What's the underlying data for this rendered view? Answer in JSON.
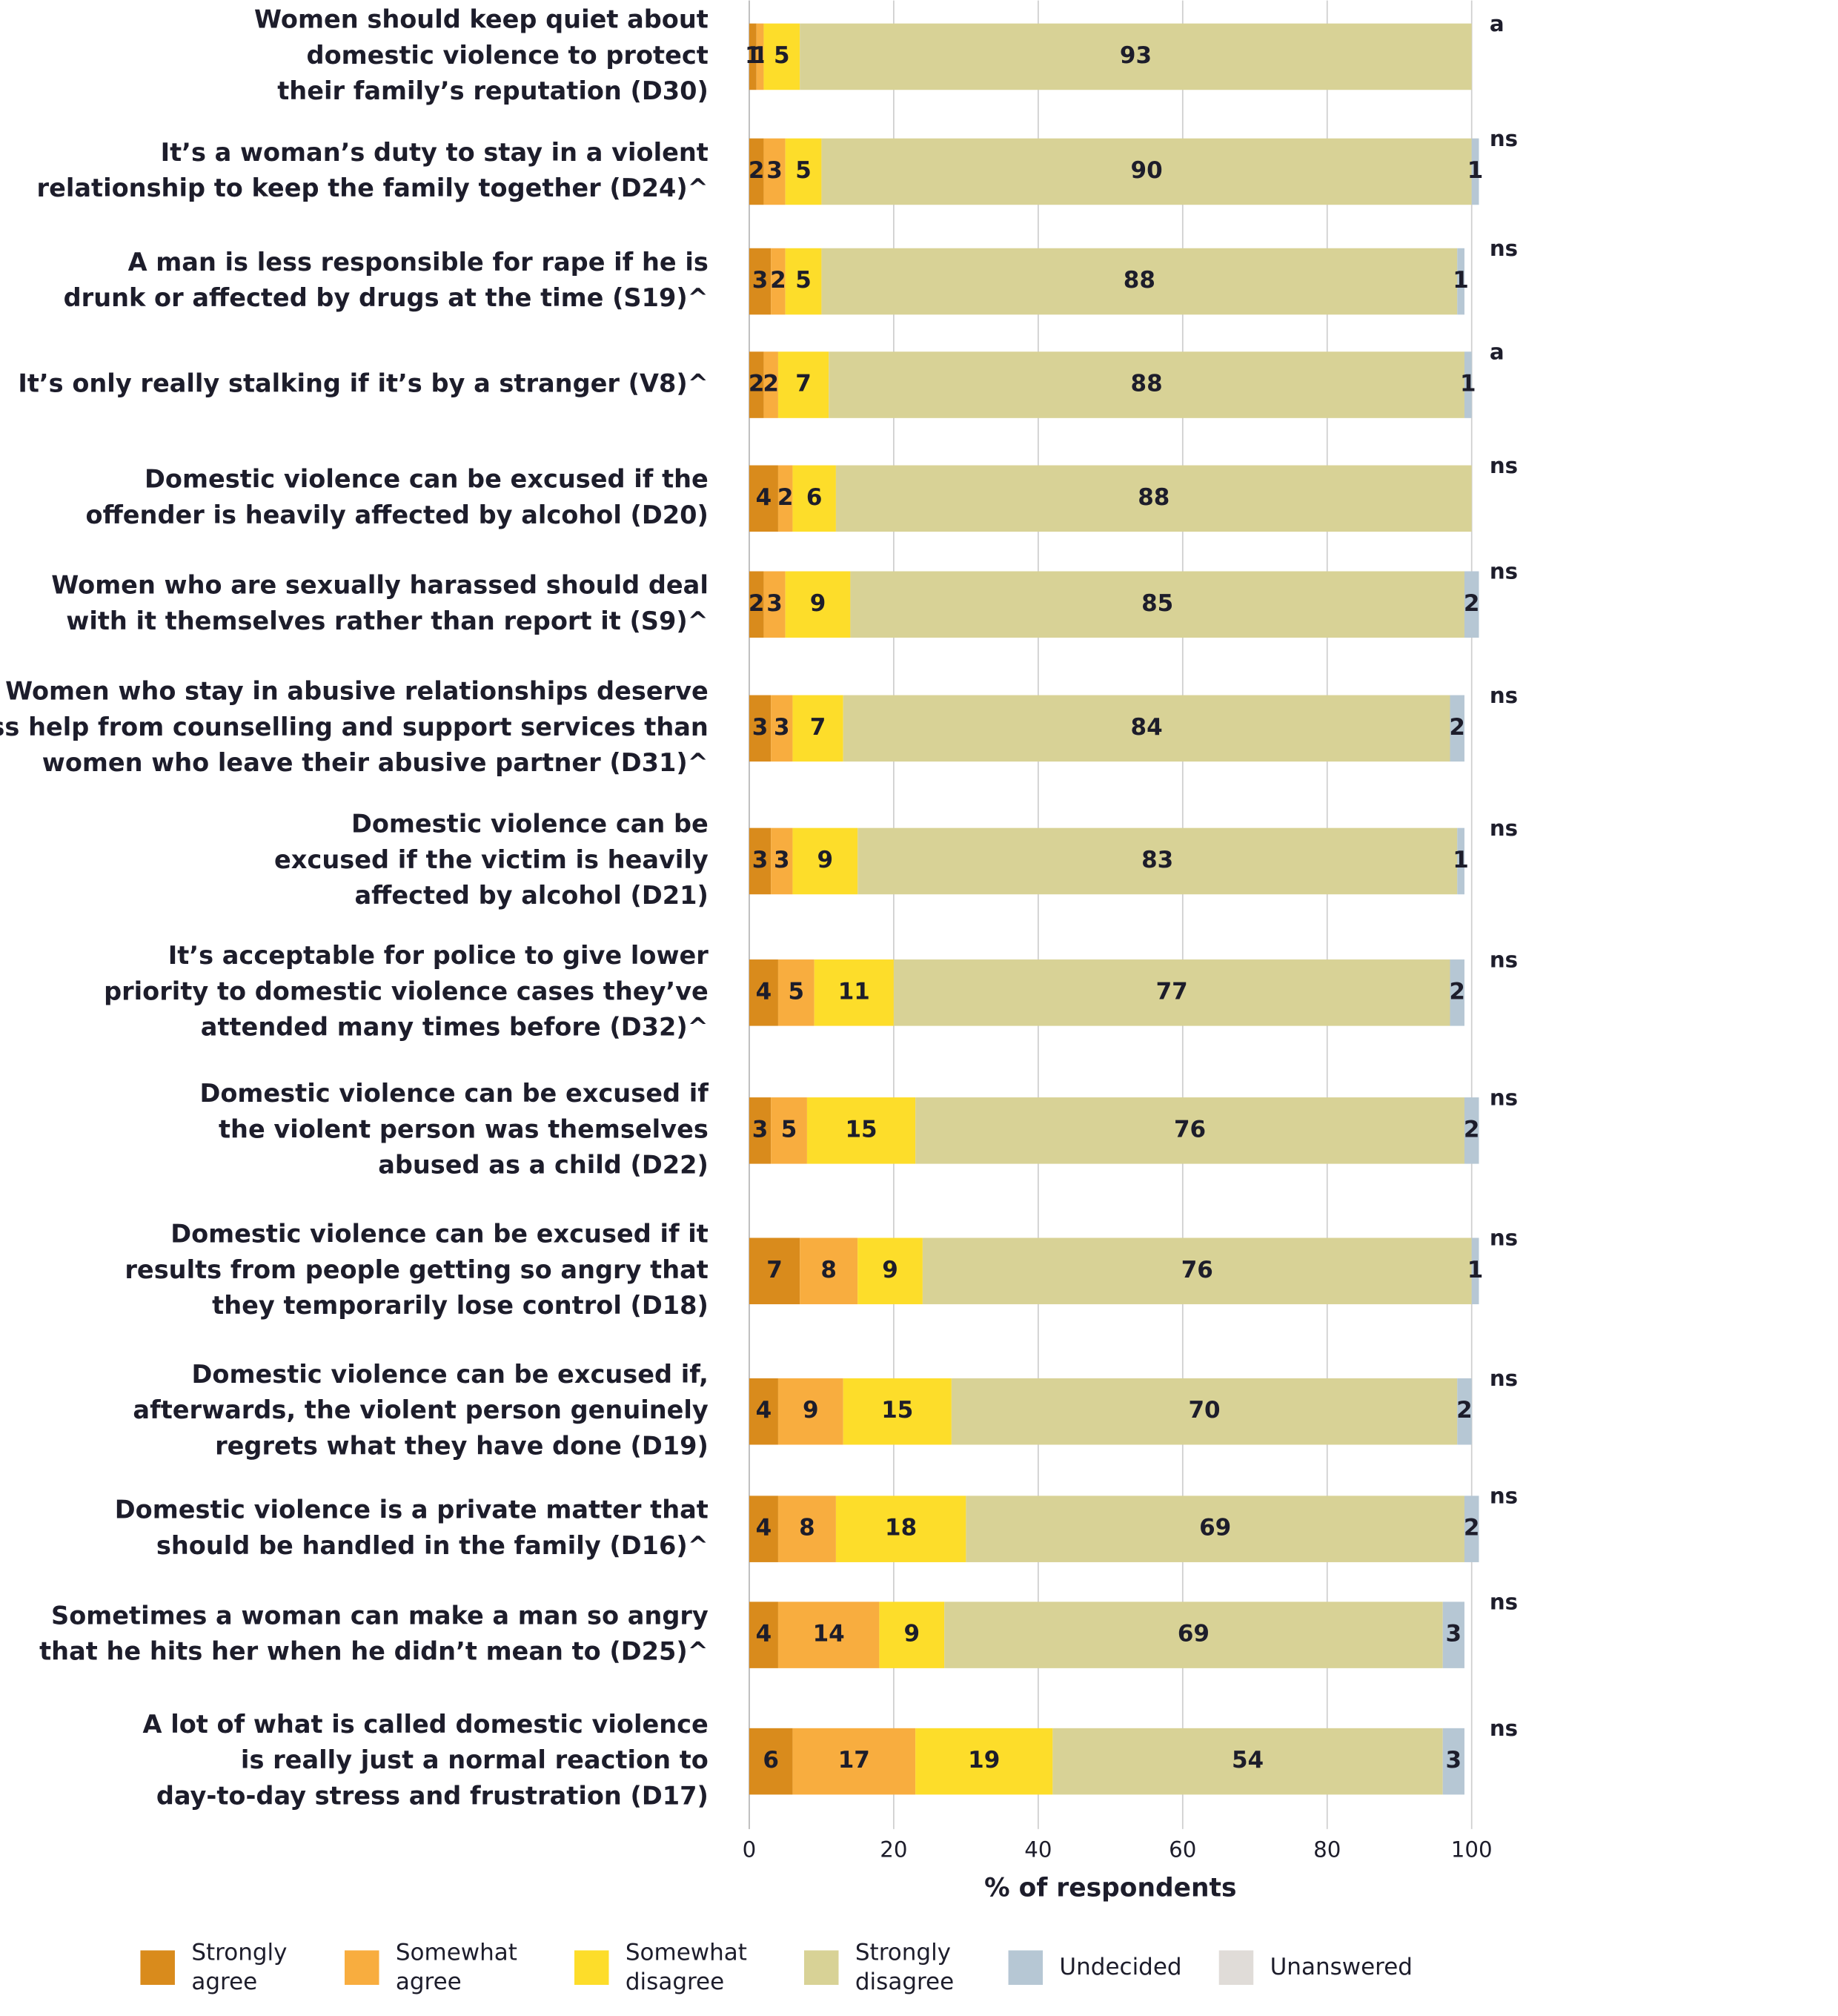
{
  "chart_data": {
    "type": "stacked_barh",
    "categories": [
      [
        "Women should keep quiet about",
        "domestic violence to protect",
        "their family’s reputation (D30)"
      ],
      [
        "It’s a woman’s duty to stay in a violent",
        "relationship to keep the family together  (D24)^"
      ],
      [
        "A man is less responsible for rape if he is",
        "drunk or affected by drugs at the time (S19)^"
      ],
      [
        "It’s only really stalking if it’s by a stranger (V8)^"
      ],
      [
        "Domestic violence can be excused if the",
        "offender is heavily affected by alcohol (D20)"
      ],
      [
        "Women who are sexually harassed should deal",
        "with it themselves rather than report it (S9)^"
      ],
      [
        "Women who stay in abusive relationships deserve",
        "less help from counselling and support services than",
        "women who leave their abusive partner (D31)^"
      ],
      [
        "Domestic violence can be",
        "excused if the victim is heavily",
        "affected by alcohol (D21)"
      ],
      [
        "It’s acceptable for police to give lower",
        "priority to domestic violence cases they’ve",
        "attended many times before (D32)^"
      ],
      [
        "Domestic violence can be excused if",
        "the violent person was themselves",
        "abused as a child (D22)"
      ],
      [
        "Domestic violence can be excused if it",
        "results from people getting so angry that",
        "they temporarily lose control (D18)"
      ],
      [
        "Domestic violence can be excused if,",
        "afterwards, the violent person genuinely",
        "regrets what they have done (D19)"
      ],
      [
        "Domestic violence is a private matter that",
        "should be handled in the family (D16)^"
      ],
      [
        "Sometimes a woman can make a man so angry",
        "that he hits her when he didn’t mean to (D25)^"
      ],
      [
        "A lot of what is called domestic violence",
        "is really just a normal reaction to",
        "day-to-day stress and frustration (D17)"
      ]
    ],
    "notes": [
      "a",
      "ns",
      "ns",
      "a",
      "ns",
      "ns",
      "ns",
      "ns",
      "ns",
      "ns",
      "ns",
      "ns",
      "ns",
      "ns",
      "ns"
    ],
    "series": [
      {
        "name": [
          "Strongly",
          "agree"
        ],
        "color": "#d98b1c",
        "values": [
          1,
          2,
          3,
          2,
          4,
          2,
          3,
          3,
          4,
          3,
          7,
          4,
          4,
          4,
          6
        ]
      },
      {
        "name": [
          "Somewhat",
          "agree"
        ],
        "color": "#f8ad3f",
        "values": [
          1,
          3,
          2,
          2,
          2,
          3,
          3,
          3,
          5,
          5,
          8,
          9,
          8,
          14,
          17
        ]
      },
      {
        "name": [
          "Somewhat",
          "disagree"
        ],
        "color": "#fddd2a",
        "values": [
          5,
          5,
          5,
          7,
          6,
          9,
          7,
          9,
          11,
          15,
          9,
          15,
          18,
          9,
          19
        ]
      },
      {
        "name": [
          "Strongly",
          "disagree"
        ],
        "color": "#d8d296",
        "values": [
          93,
          90,
          88,
          88,
          88,
          85,
          84,
          83,
          77,
          76,
          76,
          70,
          69,
          69,
          54
        ]
      },
      {
        "name": [
          "Undecided"
        ],
        "color": "#b6c7d4",
        "values": [
          0,
          1,
          1,
          1,
          0,
          2,
          2,
          1,
          2,
          2,
          1,
          2,
          2,
          3,
          3
        ]
      },
      {
        "name": [
          "Unanswered"
        ],
        "color": "#e0dcd8",
        "values": [
          0,
          0,
          0,
          0,
          0,
          0,
          0,
          0,
          0,
          0,
          0,
          0,
          0,
          0,
          0
        ]
      }
    ],
    "xlim": [
      0,
      100
    ],
    "xticks": [
      0,
      20,
      40,
      60,
      80,
      100
    ],
    "grid": true,
    "xlabel": "% of respondents",
    "legend": "bottom"
  }
}
